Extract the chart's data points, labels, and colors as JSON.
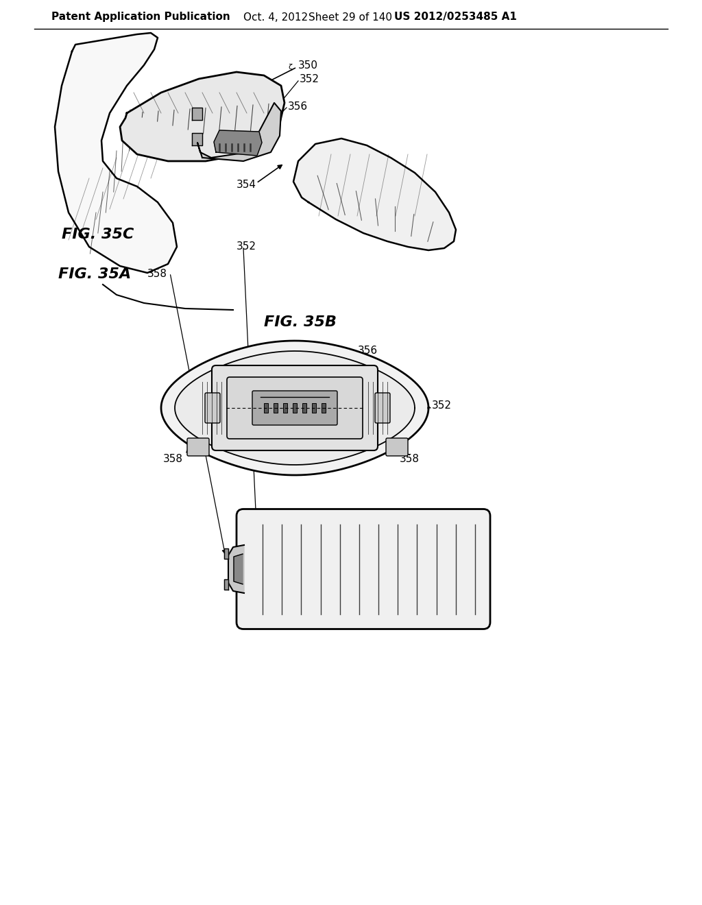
{
  "background_color": "#ffffff",
  "header_text": "Patent Application Publication",
  "header_date": "Oct. 4, 2012",
  "header_sheet": "Sheet 29 of 140",
  "header_patent": "US 2012/0253485 A1",
  "fig_labels": [
    "FIG. 35A",
    "FIG. 35B",
    "FIG. 35C"
  ],
  "ref_numbers": [
    "350",
    "352",
    "354",
    "356",
    "358"
  ],
  "text_color": "#000000",
  "line_color": "#000000",
  "header_fontsize": 11,
  "fig_label_fontsize": 16,
  "ref_fontsize": 11
}
